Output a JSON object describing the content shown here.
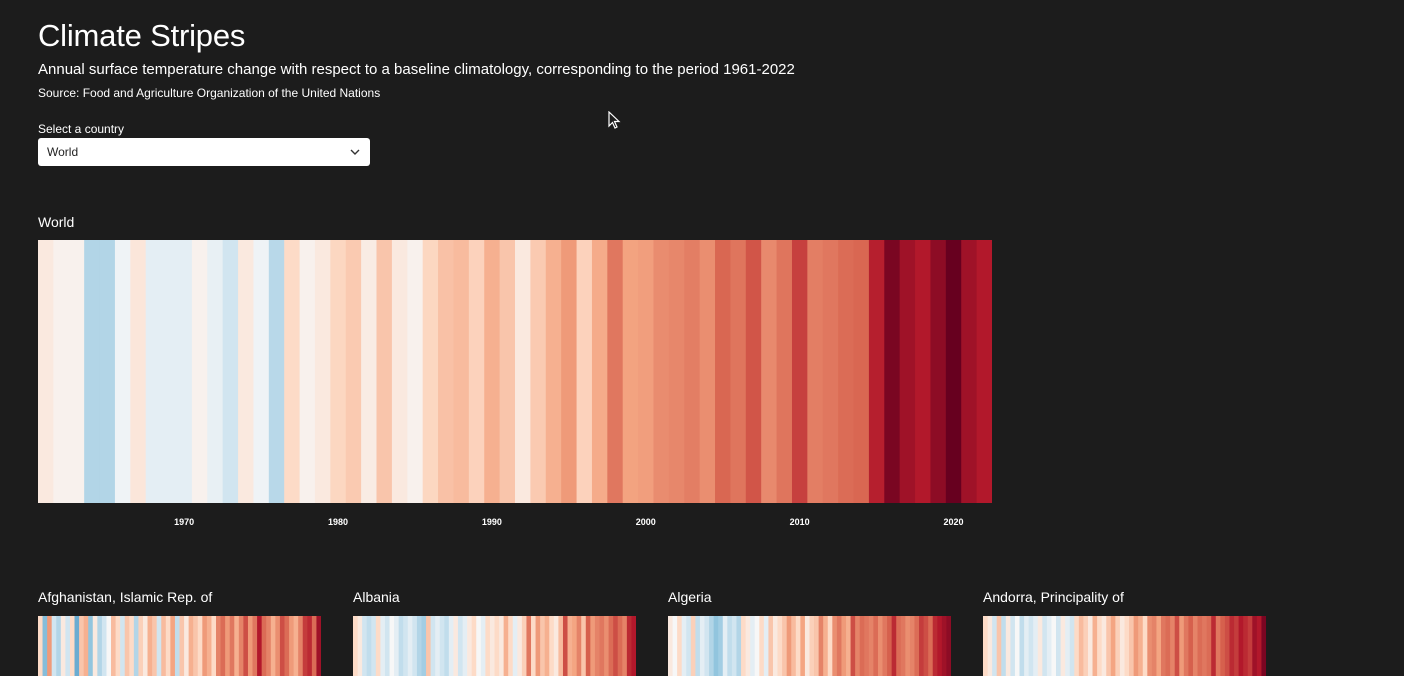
{
  "header": {
    "title": "Climate Stripes",
    "subtitle": "Annual surface temperature change with respect to a baseline climatology, corresponding to the period 1961-2022",
    "source": "Source: Food and Agriculture Organization of the United Nations"
  },
  "selector": {
    "label": "Select a country",
    "selected": "World"
  },
  "colors": {
    "background": "#1c1c1c",
    "cold_extreme": "#2166ac",
    "neutral": "#f7f7f7",
    "warm_extreme": "#67001f"
  },
  "chart_data": [
    {
      "type": "heatmap",
      "title": "World",
      "x": [
        1961,
        1962,
        1963,
        1964,
        1965,
        1966,
        1967,
        1968,
        1969,
        1970,
        1971,
        1972,
        1973,
        1974,
        1975,
        1976,
        1977,
        1978,
        1979,
        1980,
        1981,
        1982,
        1983,
        1984,
        1985,
        1986,
        1987,
        1988,
        1989,
        1990,
        1991,
        1992,
        1993,
        1994,
        1995,
        1996,
        1997,
        1998,
        1999,
        2000,
        2001,
        2002,
        2003,
        2004,
        2005,
        2006,
        2007,
        2008,
        2009,
        2010,
        2011,
        2012,
        2013,
        2014,
        2015,
        2016,
        2017,
        2018,
        2019,
        2020,
        2021,
        2022
      ],
      "values": [
        0.05,
        0.02,
        0.02,
        -0.2,
        -0.2,
        -0.02,
        0.06,
        -0.05,
        -0.05,
        -0.05,
        0.02,
        -0.04,
        -0.1,
        0.05,
        -0.02,
        -0.18,
        0.1,
        0.02,
        0.05,
        0.12,
        0.18,
        0.04,
        0.2,
        0.05,
        0.02,
        0.12,
        0.22,
        0.25,
        0.14,
        0.3,
        0.2,
        0.05,
        0.18,
        0.3,
        0.4,
        0.14,
        0.32,
        0.55,
        0.36,
        0.38,
        0.46,
        0.48,
        0.52,
        0.45,
        0.62,
        0.56,
        0.68,
        0.47,
        0.56,
        0.74,
        0.52,
        0.55,
        0.6,
        0.62,
        0.83,
        1.0,
        0.9,
        0.85,
        0.95,
        1.05,
        0.9,
        0.85
      ],
      "xticks": [
        "1970",
        "1980",
        "1990",
        "2000",
        "2010",
        "2020"
      ],
      "ylim": [
        -1,
        1
      ]
    },
    {
      "type": "heatmap",
      "title": "Afghanistan, Islamic Rep. of",
      "x": [
        1961,
        1962,
        1963,
        1964,
        1965,
        1966,
        1967,
        1968,
        1969,
        1970,
        1971,
        1972,
        1973,
        1974,
        1975,
        1976,
        1977,
        1978,
        1979,
        1980,
        1981,
        1982,
        1983,
        1984,
        1985,
        1986,
        1987,
        1988,
        1989,
        1990,
        1991,
        1992,
        1993,
        1994,
        1995,
        1996,
        1997,
        1998,
        1999,
        2000,
        2001,
        2002,
        2003,
        2004,
        2005,
        2006,
        2007,
        2008,
        2009,
        2010,
        2011,
        2012,
        2013,
        2014,
        2015,
        2016,
        2017,
        2018,
        2019,
        2020,
        2021,
        2022
      ],
      "values": [
        0.1,
        -0.35,
        0.4,
        -0.1,
        -0.2,
        0.05,
        -0.1,
        0.1,
        -0.45,
        0.2,
        0.3,
        -0.3,
        0.05,
        -0.2,
        -0.1,
        0.0,
        0.25,
        0.1,
        -0.1,
        0.2,
        0.1,
        -0.2,
        0.15,
        0.05,
        0.3,
        0.2,
        -0.1,
        0.25,
        0.1,
        0.35,
        -0.15,
        0.2,
        0.05,
        0.3,
        0.2,
        0.1,
        0.4,
        0.3,
        0.1,
        0.5,
        0.6,
        0.4,
        0.55,
        0.3,
        0.5,
        0.7,
        0.4,
        0.55,
        0.85,
        0.6,
        0.5,
        0.3,
        0.45,
        0.7,
        0.6,
        0.4,
        0.3,
        0.5,
        0.75,
        0.8,
        0.6,
        0.9
      ],
      "ylim": [
        -1,
        1
      ]
    },
    {
      "type": "heatmap",
      "title": "Albania",
      "x": [
        1961,
        1962,
        1963,
        1964,
        1965,
        1966,
        1967,
        1968,
        1969,
        1970,
        1971,
        1972,
        1973,
        1974,
        1975,
        1976,
        1977,
        1978,
        1979,
        1980,
        1981,
        1982,
        1983,
        1984,
        1985,
        1986,
        1987,
        1988,
        1989,
        1990,
        1991,
        1992,
        1993,
        1994,
        1995,
        1996,
        1997,
        1998,
        1999,
        2000,
        2001,
        2002,
        2003,
        2004,
        2005,
        2006,
        2007,
        2008,
        2009,
        2010,
        2011,
        2012,
        2013,
        2014,
        2015,
        2016,
        2017,
        2018,
        2019,
        2020,
        2021,
        2022
      ],
      "values": [
        0.1,
        0.05,
        -0.1,
        -0.15,
        -0.1,
        0.1,
        -0.05,
        -0.1,
        0.0,
        -0.05,
        -0.15,
        -0.1,
        -0.05,
        -0.1,
        -0.2,
        -0.25,
        0.2,
        -0.1,
        -0.05,
        -0.1,
        -0.15,
        -0.05,
        0.05,
        -0.1,
        -0.05,
        0.05,
        0.1,
        0.0,
        -0.05,
        0.1,
        0.05,
        0.1,
        0.05,
        0.3,
        0.1,
        -0.05,
        0.05,
        0.15,
        0.55,
        0.1,
        0.4,
        0.2,
        0.3,
        0.1,
        0.05,
        0.25,
        0.7,
        0.3,
        0.35,
        0.5,
        0.2,
        0.65,
        0.4,
        0.5,
        0.55,
        0.45,
        0.6,
        0.7,
        0.6,
        0.5,
        0.8,
        0.85
      ],
      "ylim": [
        -1,
        1
      ]
    },
    {
      "type": "heatmap",
      "title": "Algeria",
      "x": [
        1961,
        1962,
        1963,
        1964,
        1965,
        1966,
        1967,
        1968,
        1969,
        1970,
        1971,
        1972,
        1973,
        1974,
        1975,
        1976,
        1977,
        1978,
        1979,
        1980,
        1981,
        1982,
        1983,
        1984,
        1985,
        1986,
        1987,
        1988,
        1989,
        1990,
        1991,
        1992,
        1993,
        1994,
        1995,
        1996,
        1997,
        1998,
        1999,
        2000,
        2001,
        2002,
        2003,
        2004,
        2005,
        2006,
        2007,
        2008,
        2009,
        2010,
        2011,
        2012,
        2013,
        2014,
        2015,
        2016,
        2017,
        2018,
        2019,
        2020,
        2021,
        2022
      ],
      "values": [
        0.05,
        0.0,
        0.1,
        -0.05,
        -0.1,
        0.15,
        -0.15,
        -0.05,
        -0.1,
        -0.2,
        -0.3,
        -0.25,
        -0.05,
        -0.15,
        -0.1,
        -0.2,
        0.1,
        0.05,
        -0.05,
        0.0,
        0.1,
        -0.05,
        0.2,
        0.05,
        0.1,
        0.2,
        0.4,
        0.25,
        0.1,
        0.35,
        0.05,
        0.15,
        0.2,
        0.5,
        0.3,
        0.1,
        0.45,
        0.55,
        0.4,
        0.3,
        0.7,
        0.5,
        0.6,
        0.55,
        0.5,
        0.6,
        0.45,
        0.55,
        0.65,
        0.8,
        0.6,
        0.55,
        0.45,
        0.5,
        0.6,
        0.75,
        0.7,
        0.6,
        0.8,
        0.85,
        0.9,
        0.95
      ],
      "ylim": [
        -1,
        1
      ]
    },
    {
      "type": "heatmap",
      "title": "Andorra, Principality of",
      "x": [
        1961,
        1962,
        1963,
        1964,
        1965,
        1966,
        1967,
        1968,
        1969,
        1970,
        1971,
        1972,
        1973,
        1974,
        1975,
        1976,
        1977,
        1978,
        1979,
        1980,
        1981,
        1982,
        1983,
        1984,
        1985,
        1986,
        1987,
        1988,
        1989,
        1990,
        1991,
        1992,
        1993,
        1994,
        1995,
        1996,
        1997,
        1998,
        1999,
        2000,
        2001,
        2002,
        2003,
        2004,
        2005,
        2006,
        2007,
        2008,
        2009,
        2010,
        2011,
        2012,
        2013,
        2014,
        2015,
        2016,
        2017,
        2018,
        2019,
        2020,
        2021,
        2022
      ],
      "values": [
        0.1,
        0.05,
        -0.1,
        0.2,
        -0.15,
        0.05,
        -0.1,
        0.0,
        -0.15,
        -0.05,
        -0.1,
        -0.05,
        0.05,
        -0.1,
        -0.05,
        0.0,
        -0.1,
        0.05,
        -0.05,
        -0.1,
        0.1,
        0.25,
        0.15,
        0.05,
        0.3,
        0.1,
        0.05,
        0.2,
        0.35,
        0.15,
        0.05,
        0.1,
        0.2,
        0.4,
        0.3,
        0.1,
        0.45,
        0.5,
        0.35,
        0.55,
        0.6,
        0.5,
        0.7,
        0.4,
        0.55,
        0.65,
        0.5,
        0.6,
        0.55,
        0.6,
        0.8,
        0.55,
        0.65,
        0.7,
        0.8,
        0.75,
        0.85,
        0.8,
        0.75,
        0.9,
        0.85,
        1.0
      ],
      "ylim": [
        -1,
        1
      ]
    }
  ]
}
